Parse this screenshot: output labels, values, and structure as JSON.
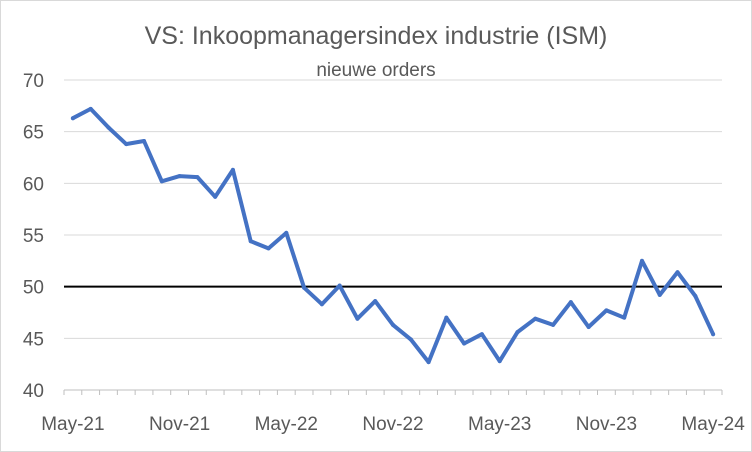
{
  "chart_data": {
    "type": "line",
    "title": "VS: Inkoopmanagersindex industrie (ISM)",
    "subtitle": "nieuwe orders",
    "xlabel": "",
    "ylabel": "",
    "ylim": [
      40,
      70
    ],
    "yticks": [
      40,
      45,
      50,
      55,
      60,
      65,
      70
    ],
    "xtick_labels": [
      "May-21",
      "Nov-21",
      "May-22",
      "Nov-22",
      "May-23",
      "Nov-23",
      "May-24"
    ],
    "x": [
      "May-21",
      "Jun-21",
      "Jul-21",
      "Aug-21",
      "Sep-21",
      "Oct-21",
      "Nov-21",
      "Dec-21",
      "Jan-22",
      "Feb-22",
      "Mar-22",
      "Apr-22",
      "May-22",
      "Jun-22",
      "Jul-22",
      "Aug-22",
      "Sep-22",
      "Oct-22",
      "Nov-22",
      "Dec-22",
      "Jan-23",
      "Feb-23",
      "Mar-23",
      "Apr-23",
      "May-23",
      "Jun-23",
      "Jul-23",
      "Aug-23",
      "Sep-23",
      "Oct-23",
      "Nov-23",
      "Dec-23",
      "Jan-24",
      "Feb-24",
      "Mar-24",
      "Apr-24",
      "May-24"
    ],
    "series": [
      {
        "values": [
          66.3,
          67.2,
          65.4,
          63.8,
          64.1,
          60.2,
          60.7,
          60.6,
          58.7,
          61.3,
          54.4,
          53.7,
          55.2,
          49.9,
          48.3,
          50.1,
          46.9,
          48.6,
          46.3,
          44.9,
          42.7,
          47.0,
          44.5,
          45.4,
          42.8,
          45.6,
          46.9,
          46.3,
          48.5,
          46.1,
          47.7,
          47.0,
          52.5,
          49.2,
          51.4,
          49.1,
          45.4
        ],
        "color": "#4472c4"
      }
    ],
    "reference_line": {
      "y": 50,
      "color": "#000000"
    },
    "grid": true,
    "gridline_color": "#d9d9d9",
    "axis_color": "#bfbfbf"
  }
}
